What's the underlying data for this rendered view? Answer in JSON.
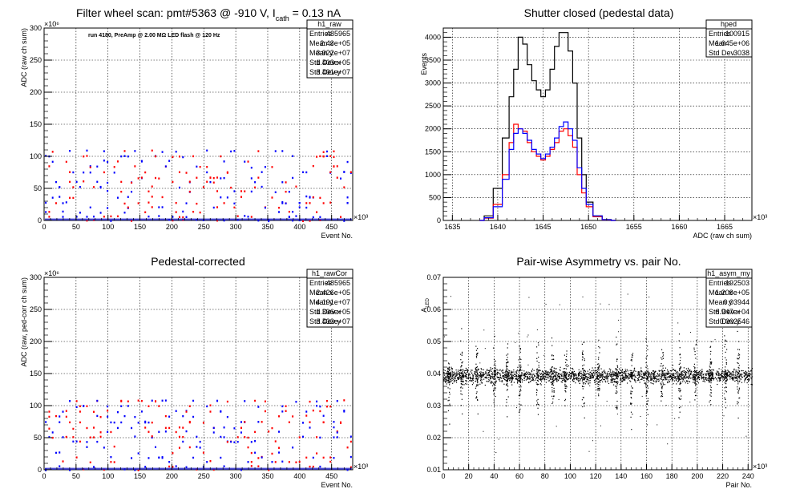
{
  "chart_data": [
    {
      "id": "raw",
      "type": "scatter",
      "title": "Filter wheel scan: pmt#5363 @  -910 V, I",
      "title_sub": "cath",
      "title_tail": " = 0.13 nA",
      "annotation": "run 4180, PreAmp @ 2.00 MΩ LED flash @  120 Hz",
      "xlabel": "Event No.",
      "ylabel": "ADC (raw ch sum)",
      "xlim": [
        0,
        483000
      ],
      "ylim": [
        0,
        300000000
      ],
      "x_exponent": "×10³",
      "y_exponent": "×10⁶",
      "xticks": [
        "0",
        "50",
        "100",
        "150",
        "200",
        "250",
        "300",
        "350",
        "400",
        "450"
      ],
      "yticks": [
        "0",
        "50",
        "100",
        "150",
        "200",
        "250",
        "300"
      ],
      "grid": true,
      "stats": {
        "name": "h1_raw",
        "rows": [
          [
            "Entries",
            "485965"
          ],
          [
            "Mean x",
            "2.43e+05"
          ],
          [
            "Mean y",
            "3.922e+07"
          ],
          [
            "Std Dev x",
            "1.403e+05"
          ],
          [
            "Std Dev y",
            "3.491e+07"
          ]
        ]
      },
      "levels": [
        0,
        6,
        13,
        20,
        27,
        36,
        45,
        52,
        60,
        66,
        75,
        84,
        92,
        100,
        108
      ],
      "colors": [
        "#ff0000",
        "#0000ff"
      ]
    },
    {
      "id": "ped",
      "type": "step-histogram",
      "title": "Shutter closed (pedestal data)",
      "xlabel": "ADC (raw ch sum)",
      "ylabel": "Events",
      "xlim": [
        1634,
        1668
      ],
      "ylim": [
        0,
        4200
      ],
      "x_exponent": "×10³",
      "xticks": [
        "1635",
        "1640",
        "1645",
        "1650",
        "1655",
        "1660",
        "1665"
      ],
      "yticks": [
        "0",
        "500",
        "1000",
        "1500",
        "2000",
        "2500",
        "3000",
        "3500",
        "4000"
      ],
      "grid": true,
      "stats": {
        "name": "hped",
        "rows": [
          [
            "Entries",
            "100915"
          ],
          [
            "Mean",
            "1.645e+06"
          ],
          [
            "Std Dev",
            "3038"
          ]
        ]
      },
      "series": [
        {
          "color": "#000000",
          "x": [
            1638,
            1639,
            1640,
            1641,
            1641.5,
            1642,
            1642.5,
            1643,
            1643.5,
            1644,
            1644.5,
            1645,
            1645.5,
            1646,
            1646.5,
            1647,
            1647.5,
            1648,
            1648.5,
            1649,
            1649.5,
            1650,
            1651,
            1652,
            1653
          ],
          "values": [
            0,
            100,
            700,
            1800,
            2700,
            3300,
            4000,
            3850,
            3400,
            3050,
            2850,
            2700,
            2850,
            3300,
            3800,
            4100,
            4100,
            3700,
            3000,
            1800,
            1000,
            400,
            100,
            20,
            0
          ]
        },
        {
          "color": "#ff0000",
          "x": [
            1638,
            1639,
            1640,
            1641,
            1641.5,
            1642,
            1642.5,
            1643,
            1643.5,
            1644,
            1644.5,
            1645,
            1645.5,
            1646,
            1646.5,
            1647,
            1647.5,
            1648,
            1648.5,
            1649,
            1649.5,
            1650,
            1651,
            1652,
            1653
          ],
          "values": [
            0,
            50,
            350,
            1000,
            1700,
            2100,
            2000,
            1950,
            1700,
            1500,
            1400,
            1320,
            1400,
            1550,
            1700,
            1950,
            2000,
            1850,
            1600,
            1000,
            600,
            300,
            80,
            10,
            0
          ]
        },
        {
          "color": "#0000ff",
          "x": [
            1638,
            1639,
            1640,
            1641,
            1641.5,
            1642,
            1642.5,
            1643,
            1643.5,
            1644,
            1644.5,
            1645,
            1645.5,
            1646,
            1646.5,
            1647,
            1647.5,
            1648,
            1648.5,
            1649,
            1649.5,
            1650,
            1651,
            1652,
            1653
          ],
          "values": [
            0,
            60,
            300,
            900,
            1550,
            1900,
            2000,
            1900,
            1750,
            1550,
            1450,
            1350,
            1450,
            1600,
            1800,
            2050,
            2150,
            2000,
            1750,
            1150,
            700,
            350,
            100,
            15,
            0
          ]
        }
      ]
    },
    {
      "id": "cor",
      "type": "scatter",
      "title": "Pedestal-corrected",
      "xlabel": "Event No.",
      "ylabel": "ADC (raw, ped-corr ch sum)",
      "xlim": [
        0,
        483000
      ],
      "ylim": [
        0,
        300000000
      ],
      "x_exponent": "×10³",
      "y_exponent": "×10⁶",
      "xticks": [
        "0",
        "50",
        "100",
        "150",
        "200",
        "250",
        "300",
        "350",
        "400",
        "450"
      ],
      "yticks": [
        "0",
        "50",
        "100",
        "150",
        "200",
        "250",
        "300"
      ],
      "grid": true,
      "stats": {
        "name": "h1_rawCor",
        "rows": [
          [
            "Entries",
            "485965"
          ],
          [
            "Mean x",
            "2.426e+05"
          ],
          [
            "Mean y",
            "4.191e+07"
          ],
          [
            "Std Dev x",
            "1.396e+05"
          ],
          [
            "Std Dev y",
            "3.432e+07"
          ]
        ]
      },
      "levels": [
        0,
        5,
        12,
        19,
        26,
        35,
        44,
        51,
        59,
        65,
        74,
        83,
        91,
        99,
        107
      ],
      "colors": [
        "#ff0000",
        "#0000ff"
      ]
    },
    {
      "id": "asym",
      "type": "scatter",
      "title": "Pair-wise Asymmetry vs. pair No.",
      "xlabel": "Pair No.",
      "ylabel": "A",
      "ylabel_sub": "LED",
      "xlim": [
        0,
        243000
      ],
      "ylim": [
        0.01,
        0.07
      ],
      "x_exponent": "×10³",
      "xticks": [
        "0",
        "20",
        "40",
        "60",
        "80",
        "100",
        "120",
        "140",
        "160",
        "180",
        "200",
        "220",
        "240"
      ],
      "yticks": [
        "0.01",
        "0.02",
        "0.03",
        "0.04",
        "0.05",
        "0.06",
        "0.07"
      ],
      "grid": true,
      "stats": {
        "name": "h1_asym_my",
        "rows": [
          [
            "Entries",
            "192503"
          ],
          [
            "Mean x",
            "1.208e+05"
          ],
          [
            "Mean y",
            "0.03944"
          ],
          [
            "Std Dev x",
            "6.947e+04"
          ],
          [
            "Std Dev y",
            "0.002546"
          ]
        ]
      },
      "band_center": 0.0394,
      "spike_positions": [
        4000,
        14000,
        26000,
        40000,
        50000,
        60000,
        74000,
        86000,
        96000,
        110000,
        122000,
        136000,
        148000,
        160000,
        172000,
        186000,
        198000,
        210000,
        222000,
        232000
      ]
    }
  ]
}
